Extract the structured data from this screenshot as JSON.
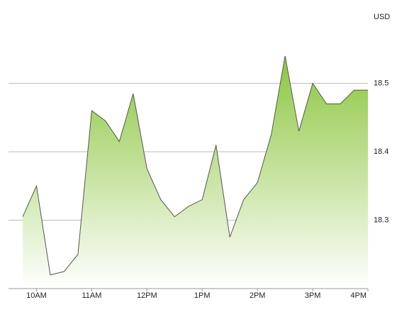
{
  "chart_data": {
    "type": "area",
    "y_label": "USD",
    "x": [
      9.75,
      10,
      10.25,
      10.5,
      10.75,
      11,
      11.25,
      11.5,
      11.75,
      12,
      12.25,
      12.5,
      12.75,
      13,
      13.25,
      13.5,
      13.75,
      14,
      14.25,
      14.5,
      14.75,
      15,
      15.25,
      15.5,
      15.75,
      16
    ],
    "values": [
      18.305,
      18.35,
      18.22,
      18.225,
      18.25,
      18.46,
      18.445,
      18.415,
      18.485,
      18.375,
      18.33,
      18.305,
      18.32,
      18.33,
      18.41,
      18.275,
      18.33,
      18.355,
      18.425,
      18.54,
      18.43,
      18.5,
      18.47,
      18.47,
      18.49,
      18.49
    ],
    "color": "#8cc63f",
    "line_color": "#555555",
    "xlim": [
      9.75,
      16
    ],
    "xticks": [
      {
        "value": 10,
        "label": "10AM"
      },
      {
        "value": 11,
        "label": "11AM"
      },
      {
        "value": 12,
        "label": "12PM"
      },
      {
        "value": 13,
        "label": "1PM"
      },
      {
        "value": 14,
        "label": "2PM"
      },
      {
        "value": 15,
        "label": "3PM"
      },
      {
        "value": 16,
        "label": "4PM"
      }
    ],
    "ylim": [
      18.2,
      18.6
    ],
    "yticks": [
      18.3,
      18.4,
      18.5
    ],
    "grid": true
  }
}
